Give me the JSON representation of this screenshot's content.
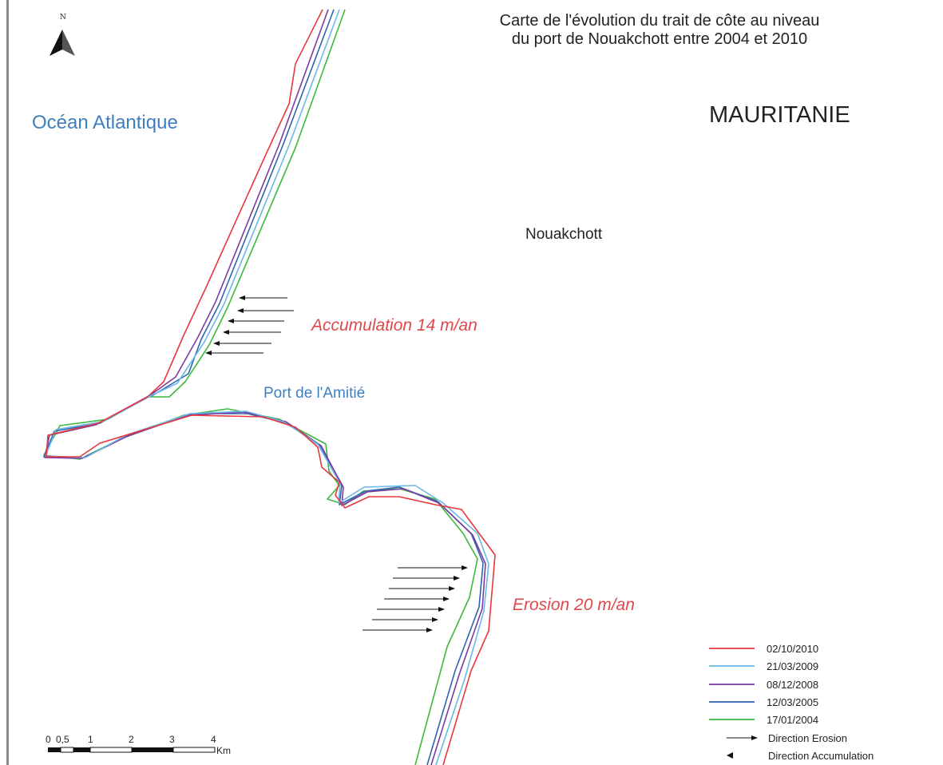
{
  "title_line1": "Carte de l'évolution du trait de côte au niveau",
  "title_line2": "du port de Nouakchott entre 2004 et 2010",
  "north_label": "N",
  "labels": {
    "ocean": "Océan Atlantique",
    "country": "MAURITANIE",
    "city": "Nouakchott",
    "port": "Port de l'Amitié",
    "accumulation": "Accumulation 14 m/an",
    "erosion": "Erosion 20 m/an"
  },
  "legend": [
    {
      "label": "02/10/2010",
      "color": "#e8383d"
    },
    {
      "label": "21/03/2009",
      "color": "#6bb8e6"
    },
    {
      "label": "08/12/2008",
      "color": "#7a3aa3"
    },
    {
      "label": "12/03/2005",
      "color": "#2e63b0"
    },
    {
      "label": "17/01/2004",
      "color": "#3cb83c"
    }
  ],
  "legend_arrows": {
    "erosion": "Direction Erosion",
    "accumulation": "Direction Accumulation"
  },
  "scale": {
    "ticks": [
      "0",
      "0,5",
      "1",
      "2",
      "3",
      "4"
    ],
    "unit": "Km"
  }
}
